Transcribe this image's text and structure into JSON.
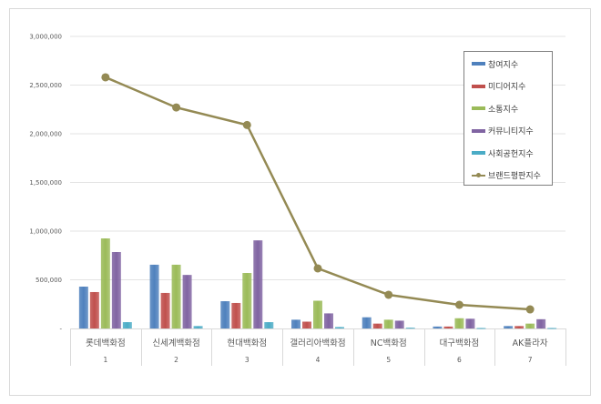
{
  "chart_data": {
    "type": "bar",
    "title": "",
    "xlabel": "",
    "ylabel": "",
    "ylim": [
      0,
      3000000
    ],
    "yticks": [
      0,
      500000,
      1000000,
      1500000,
      2000000,
      2500000,
      3000000
    ],
    "ytick_labels": [
      "-",
      "500,000",
      "1,000,000",
      "1,500,000",
      "2,000,000",
      "2,500,000",
      "3,000,000"
    ],
    "grid": true,
    "legend_position": "right-top-inside",
    "categories": [
      "롯데백화점",
      "신세계백화점",
      "현대백화점",
      "갤러리아백화점",
      "NC백화점",
      "대구백화점",
      "AK플라자"
    ],
    "category_ranks": [
      "1",
      "2",
      "3",
      "4",
      "5",
      "6",
      "7"
    ],
    "series": [
      {
        "name": "참여지수",
        "type": "bar",
        "color": "#4F81BD",
        "values": [
          430000,
          655000,
          280000,
          90000,
          115000,
          20000,
          25000
        ]
      },
      {
        "name": "미디어지수",
        "type": "bar",
        "color": "#C0504D",
        "values": [
          374000,
          365000,
          262000,
          70000,
          50000,
          20000,
          25000
        ]
      },
      {
        "name": "소통지수",
        "type": "bar",
        "color": "#9BBB59",
        "values": [
          925000,
          655000,
          570000,
          285000,
          90000,
          105000,
          50000
        ]
      },
      {
        "name": "커뮤니티지수",
        "type": "bar",
        "color": "#8064A2",
        "values": [
          785000,
          550000,
          905000,
          155000,
          80000,
          100000,
          95000
        ]
      },
      {
        "name": "사회공헌지수",
        "type": "bar",
        "color": "#4BACC6",
        "values": [
          65000,
          25000,
          65000,
          15000,
          8000,
          5000,
          5000
        ]
      },
      {
        "name": "브랜드평판지수",
        "type": "line",
        "color": "#948A54",
        "values": [
          2580000,
          2270000,
          2090000,
          617000,
          346000,
          243000,
          196000
        ]
      }
    ]
  }
}
